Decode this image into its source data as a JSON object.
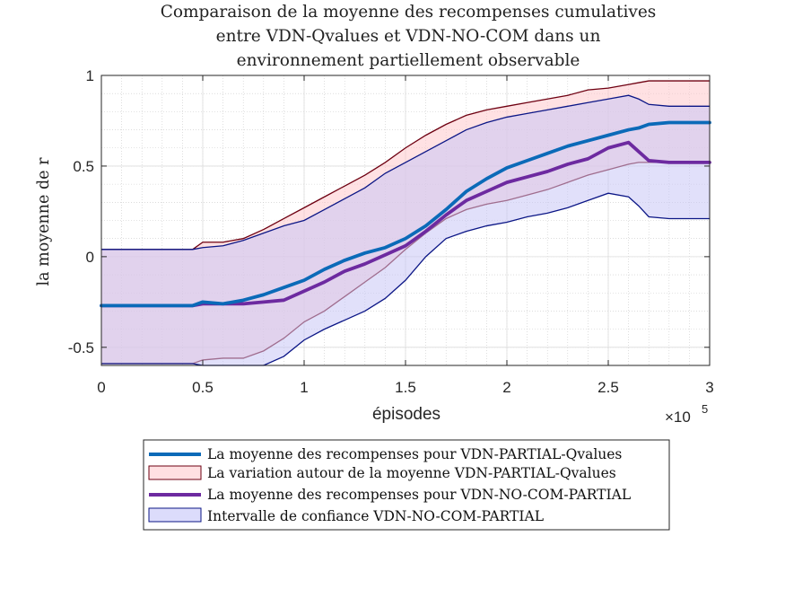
{
  "chart_data": {
    "type": "area",
    "title": [
      "Comparaison de la moyenne des recompenses cumulatives",
      "entre VDN-Qvalues et VDN-NO-COM dans un",
      "environnement partiellement observable"
    ],
    "xlabel": "épisodes",
    "ylabel": "la moyenne de r",
    "x_exponent": "×10",
    "x_exponent_power": "5",
    "xlim": [
      0,
      300000
    ],
    "ylim": [
      -0.6,
      1.0
    ],
    "xticks": [
      0,
      50000,
      100000,
      150000,
      200000,
      250000,
      300000
    ],
    "xtick_labels": [
      "0",
      "0.5",
      "1",
      "1.5",
      "2",
      "2.5",
      "3"
    ],
    "yticks": [
      -0.5,
      0,
      0.5,
      1
    ],
    "ytick_labels": [
      "-0.5",
      "0",
      "0.5",
      "1"
    ],
    "grid": true,
    "minor_grid": true,
    "legend_position": "bottom",
    "x": [
      0,
      45000,
      50000,
      60000,
      70000,
      80000,
      90000,
      100000,
      110000,
      120000,
      130000,
      140000,
      150000,
      160000,
      170000,
      180000,
      190000,
      200000,
      210000,
      220000,
      230000,
      240000,
      250000,
      260000,
      265000,
      270000,
      280000,
      300000
    ],
    "series": [
      {
        "name": "La moyenne des recompenses pour VDN-PARTIAL-Qvalues",
        "kind": "line",
        "color": "#0b6ab8",
        "values": [
          -0.27,
          -0.27,
          -0.25,
          -0.26,
          -0.24,
          -0.21,
          -0.17,
          -0.13,
          -0.07,
          -0.02,
          0.02,
          0.05,
          0.1,
          0.17,
          0.26,
          0.36,
          0.43,
          0.49,
          0.53,
          0.57,
          0.61,
          0.64,
          0.67,
          0.7,
          0.71,
          0.73,
          0.74,
          0.74
        ]
      },
      {
        "name": "La variation autour de la moyenne VDN-PARTIAL-Qvalues",
        "kind": "band",
        "fill": "#ffc8cc",
        "edge": "#6e0011",
        "upper": [
          0.04,
          0.04,
          0.08,
          0.08,
          0.1,
          0.15,
          0.21,
          0.27,
          0.33,
          0.39,
          0.45,
          0.52,
          0.6,
          0.67,
          0.73,
          0.78,
          0.81,
          0.83,
          0.85,
          0.87,
          0.89,
          0.92,
          0.93,
          0.95,
          0.96,
          0.97,
          0.97,
          0.97
        ],
        "lower": [
          -0.59,
          -0.59,
          -0.57,
          -0.56,
          -0.56,
          -0.52,
          -0.45,
          -0.36,
          -0.3,
          -0.22,
          -0.14,
          -0.06,
          0.04,
          0.13,
          0.21,
          0.26,
          0.29,
          0.31,
          0.34,
          0.37,
          0.41,
          0.45,
          0.48,
          0.51,
          0.52,
          0.52,
          0.52,
          0.52
        ]
      },
      {
        "name": "La moyenne des recompenses pour VDN-NO-COM-PARTIAL",
        "kind": "line",
        "color": "#6d2aa0",
        "values": [
          -0.27,
          -0.27,
          -0.26,
          -0.26,
          -0.26,
          -0.25,
          -0.24,
          -0.19,
          -0.14,
          -0.08,
          -0.04,
          0.01,
          0.06,
          0.14,
          0.23,
          0.31,
          0.36,
          0.41,
          0.44,
          0.47,
          0.51,
          0.54,
          0.6,
          0.63,
          0.58,
          0.53,
          0.52,
          0.52
        ]
      },
      {
        "name": "Intervalle de confiance VDN-NO-COM-PARTIAL",
        "kind": "band",
        "fill": "#c9c7f6",
        "edge": "#0b1686",
        "upper": [
          0.04,
          0.04,
          0.05,
          0.06,
          0.09,
          0.13,
          0.17,
          0.2,
          0.26,
          0.32,
          0.38,
          0.46,
          0.52,
          0.58,
          0.64,
          0.7,
          0.74,
          0.77,
          0.79,
          0.81,
          0.83,
          0.85,
          0.87,
          0.89,
          0.87,
          0.84,
          0.83,
          0.83
        ],
        "lower": [
          -0.59,
          -0.59,
          -0.6,
          -0.6,
          -0.6,
          -0.6,
          -0.55,
          -0.46,
          -0.4,
          -0.35,
          -0.3,
          -0.23,
          -0.13,
          0.0,
          0.1,
          0.14,
          0.17,
          0.19,
          0.22,
          0.24,
          0.27,
          0.31,
          0.35,
          0.33,
          0.28,
          0.22,
          0.21,
          0.21
        ]
      }
    ]
  }
}
